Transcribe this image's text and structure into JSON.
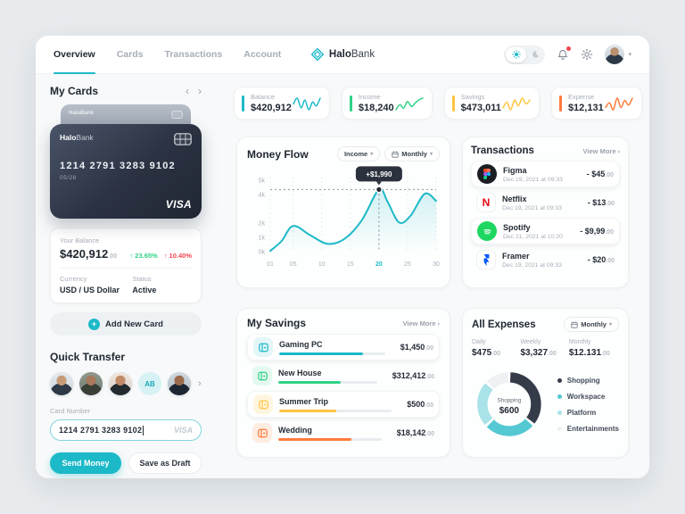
{
  "nav": {
    "tabs": [
      {
        "label": "Overview"
      },
      {
        "label": "Cards"
      },
      {
        "label": "Transactions"
      },
      {
        "label": "Account"
      }
    ],
    "brand_bold": "Halo",
    "brand_light": "Bank"
  },
  "my_cards": {
    "title": "My Cards",
    "card": {
      "brand_bold": "Halo",
      "brand_light": "Bank",
      "number": "1214 2791 3283 9102",
      "expiry": "05/28",
      "network": "VISA"
    },
    "balance": {
      "label": "Your Balance",
      "amount": "$420,912",
      "cents": ".00",
      "change_up": "↑ 23.65%",
      "change_down": "↑ 10.40%",
      "currency_label": "Currency",
      "currency_value": "USD / US Dollar",
      "status_label": "Status",
      "status_value": "Active"
    },
    "add_card_label": "Add New Card"
  },
  "quick_transfer": {
    "title": "Quick Transfer",
    "avatar_initials": "AB",
    "card_number_label": "Card Number",
    "card_number_value": "1214 2791 3283 9102",
    "network": "VISA",
    "send_label": "Send Money",
    "draft_label": "Save as Draft"
  },
  "stats": {
    "items": [
      {
        "label": "Balance",
        "value": "$420,912",
        "color": "#1CB9C8",
        "spark": [
          4,
          7,
          2,
          6,
          1,
          5,
          3,
          7
        ]
      },
      {
        "label": "Income",
        "value": "$18,240",
        "color": "#2FD286",
        "spark": [
          1,
          4,
          2,
          6,
          3,
          5,
          7,
          8
        ]
      },
      {
        "label": "Savings",
        "value": "$473,011",
        "color": "#FFC542",
        "spark": [
          2,
          5,
          1,
          6,
          3,
          7,
          4,
          6
        ]
      },
      {
        "label": "Expense",
        "value": "$12,131",
        "color": "#FF7A3C",
        "spark": [
          3,
          5,
          2,
          7,
          3,
          6,
          4,
          7
        ]
      }
    ]
  },
  "money_flow": {
    "title": "Money Flow",
    "filter_metric": "Income",
    "filter_period": "Monthly"
  },
  "transactions": {
    "title": "Transactions",
    "view_more": "View More",
    "items": [
      {
        "name": "Figma",
        "date": "Dec 19, 2021 at 09:33",
        "amount": "- $45",
        "cents": ".00"
      },
      {
        "name": "Netflix",
        "date": "Dec 19, 2021 at 09:33",
        "amount": "- $13",
        "cents": ".00"
      },
      {
        "name": "Spotify",
        "date": "Dec 21, 2021 at 10:20",
        "amount": "- $9,99",
        "cents": ".00"
      },
      {
        "name": "Framer",
        "date": "Dec 19, 2021 at 09:33",
        "amount": "- $20",
        "cents": ".00"
      }
    ]
  },
  "my_savings": {
    "title": "My Savings",
    "view_more": "View More",
    "items": [
      {
        "name": "Gaming PC",
        "amount": "$1,450",
        "cents": ".00",
        "progress": 79,
        "color": "#1CB9C8",
        "tint": "#E3F6F8"
      },
      {
        "name": "New House",
        "amount": "$312,412",
        "cents": ".00",
        "progress": 63,
        "color": "#2FD286",
        "tint": "#E4FAF0"
      },
      {
        "name": "Summer Trip",
        "amount": "$500",
        "cents": ".00",
        "progress": 51,
        "color": "#FFC542",
        "tint": "#FFF6E0"
      },
      {
        "name": "Wedding",
        "amount": "$18,142",
        "cents": ".00",
        "progress": 71,
        "color": "#FF7A3C",
        "tint": "#FFEDE2"
      }
    ]
  },
  "all_expenses": {
    "title": "All Expenses",
    "filter_period": "Monthly",
    "summary": [
      {
        "label": "Daily",
        "value": "$475",
        "cents": ".00"
      },
      {
        "label": "Weekly",
        "value": "$3,327",
        "cents": ".00"
      },
      {
        "label": "Monthly",
        "value": "$12.131",
        "cents": ".00"
      }
    ]
  },
  "chart_data": [
    {
      "id": "money_flow",
      "type": "line",
      "title": "Money Flow",
      "series": [
        {
          "name": "Income",
          "points": [
            [
              1,
              50
            ],
            [
              3,
              750
            ],
            [
              5,
              1800
            ],
            [
              8,
              1150
            ],
            [
              11,
              550
            ],
            [
              14,
              900
            ],
            [
              17,
              2200
            ],
            [
              20,
              4350
            ],
            [
              21.5,
              3500
            ],
            [
              23.5,
              2050
            ],
            [
              25.5,
              2500
            ],
            [
              28,
              4050
            ],
            [
              30,
              3550
            ]
          ]
        }
      ],
      "xlim": [
        1,
        30
      ],
      "ylim": [
        0,
        5000
      ],
      "xticks": [
        1,
        5,
        10,
        15,
        20,
        25,
        30
      ],
      "xtick_labels": [
        "01",
        "05",
        "10",
        "15",
        "20",
        "25",
        "30"
      ],
      "ytick_values": [
        0,
        1000,
        2000,
        4000,
        5000
      ],
      "ytick_labels": [
        "0k",
        "1k",
        "2k",
        "4k",
        "5k"
      ],
      "highlight": {
        "x": 20,
        "y": 4350,
        "tooltip": "+$1,990"
      },
      "line_color": "#1CB9C8",
      "grid": "vertical-dashed",
      "legend": "none"
    },
    {
      "id": "all_expenses",
      "type": "pie",
      "center_label": "Shopping",
      "center_value": "$600",
      "segments": [
        {
          "label": "Shopping",
          "value": 600,
          "fraction": 0.36,
          "color": "#343C49"
        },
        {
          "label": "Workspace",
          "fraction": 0.27,
          "color": "#54C8D3"
        },
        {
          "label": "Platform",
          "fraction": 0.24,
          "color": "#A9E2E8"
        },
        {
          "label": "Entertainments",
          "fraction": 0.13,
          "color": "#EDF1F4"
        }
      ],
      "legend_position": "right"
    }
  ]
}
